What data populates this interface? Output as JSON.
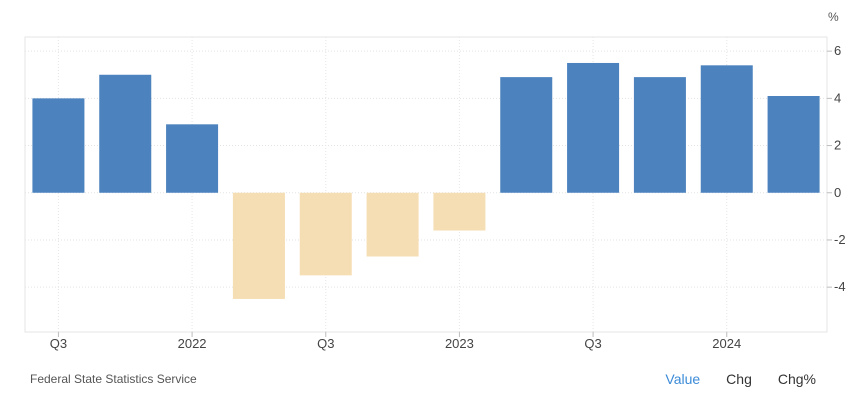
{
  "chart_data": {
    "type": "bar",
    "unit": "%",
    "categories": [
      "Q3",
      "",
      "2022",
      "",
      "Q3",
      "",
      "2023",
      "",
      "Q3",
      "",
      "2024",
      ""
    ],
    "values": [
      4.0,
      5.0,
      2.9,
      -4.5,
      -3.5,
      -2.7,
      -1.6,
      4.9,
      5.5,
      4.9,
      5.4,
      4.1
    ],
    "ylim": [
      -5.9,
      6.6
    ],
    "yticks": [
      6,
      4,
      2,
      0,
      -2,
      -4
    ],
    "positive_color": "#4c82be",
    "negative_color": "#f5deb3",
    "grid": true
  },
  "footer": {
    "source": "Federal State Statistics Service",
    "tabs": [
      "Value",
      "Chg",
      "Chg%"
    ],
    "active_tab": "Value",
    "active_color": "#3c8bd8"
  }
}
